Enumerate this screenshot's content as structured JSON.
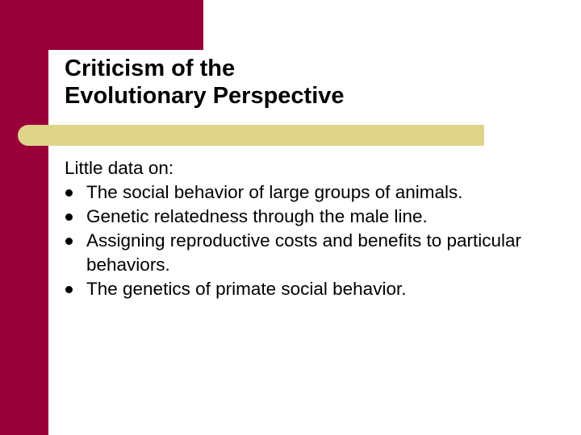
{
  "slide": {
    "title_lines": [
      "Criticism of the",
      "Evolutionary Perspective"
    ],
    "intro": "Little data on:",
    "bullets": [
      "The social behavior of large groups of animals.",
      "Genetic relatedness through the male line.",
      "Assigning reproductive costs and benefits to particular behaviors.",
      "The genetics of primate social behavior."
    ],
    "colors": {
      "accent_maroon": "#99003a",
      "accent_gold": "#ded58a",
      "text": "#000000",
      "background": "#ffffff"
    }
  }
}
